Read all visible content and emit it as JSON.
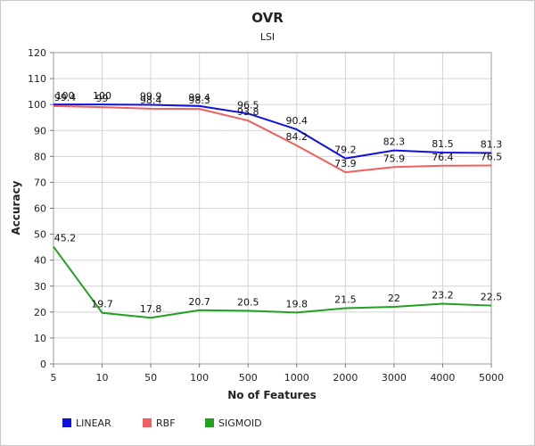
{
  "chart_data": {
    "type": "line",
    "title": "OVR",
    "subtitle": "LSI",
    "xlabel": "No of Features",
    "ylabel": "Accuracy",
    "categories": [
      "5",
      "10",
      "50",
      "100",
      "500",
      "1000",
      "2000",
      "3000",
      "4000",
      "5000"
    ],
    "ylim": [
      0,
      120
    ],
    "yticks": [
      0,
      10,
      20,
      30,
      40,
      50,
      60,
      70,
      80,
      90,
      100,
      110,
      120
    ],
    "grid": true,
    "legend_position": "bottom-left",
    "series": [
      {
        "name": "LINEAR",
        "color": "#1010e0",
        "values": [
          100,
          100,
          99.9,
          99.4,
          96.5,
          90.4,
          79.2,
          82.3,
          81.5,
          81.3
        ],
        "labels": [
          "100",
          "100",
          "99.9",
          "99.4",
          "96.5",
          "90.4",
          "79.2",
          "82.3",
          "81.5",
          "81.3"
        ]
      },
      {
        "name": "RBF",
        "color": "#f06060",
        "values": [
          99.4,
          99,
          98.4,
          98.3,
          93.8,
          84.2,
          73.9,
          75.9,
          76.4,
          76.5
        ],
        "labels": [
          "99.4",
          "99",
          "98.4",
          "98.3",
          "93.8",
          "84.2",
          "73.9",
          "75.9",
          "76.4",
          "76.5"
        ]
      },
      {
        "name": "SIGMOID",
        "color": "#22a022",
        "values": [
          45.2,
          19.7,
          17.8,
          20.7,
          20.5,
          19.8,
          21.5,
          22,
          23.2,
          22.5
        ],
        "labels": [
          "45.2",
          "19.7",
          "17.8",
          "20.7",
          "20.5",
          "19.8",
          "21.5",
          "22",
          "23.2",
          "22.5"
        ]
      }
    ]
  }
}
